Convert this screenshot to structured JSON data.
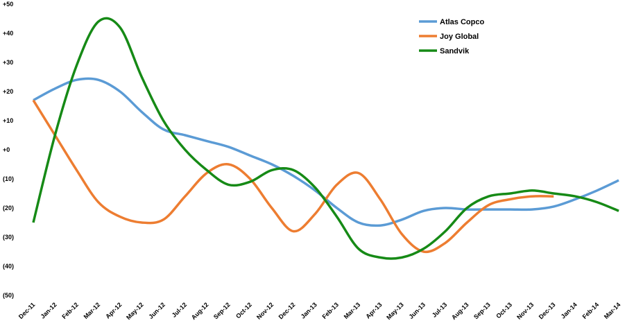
{
  "chart_data": {
    "type": "line",
    "categories": [
      "Dec-11",
      "Jan-12",
      "Feb-12",
      "Mar-12",
      "Apr-12",
      "May-12",
      "Jun-12",
      "Jul-12",
      "Aug-12",
      "Sep-12",
      "Oct-12",
      "Nov-12",
      "Dec-12",
      "Jan-13",
      "Feb-13",
      "Mar-13",
      "Apr-13",
      "May-13",
      "Jun-13",
      "Jul-13",
      "Aug-13",
      "Sep-13",
      "Oct-13",
      "Nov-13",
      "Dec-13",
      "Jan-14",
      "Feb-14",
      "Mar-14"
    ],
    "series": [
      {
        "name": "Atlas Copco",
        "color": "#5b9bd5",
        "values": [
          17,
          21,
          24,
          24,
          20,
          13,
          7,
          5,
          3,
          1,
          -2,
          -5,
          -9,
          -14,
          -20,
          -25,
          -26,
          -24,
          -21,
          -20,
          -20.5,
          -20.5,
          -20.5,
          -20.5,
          -19.5,
          -17,
          -14,
          -10.5
        ]
      },
      {
        "name": "Joy Global",
        "color": "#ed7d31",
        "values": [
          17,
          5,
          -7,
          -18,
          -23,
          -25,
          -24,
          -16,
          -8,
          -5,
          -10,
          -20,
          -28,
          -22,
          -12,
          -8,
          -17,
          -29,
          -35,
          -32,
          -25,
          -19,
          -17,
          -16,
          -16,
          null,
          null,
          null
        ]
      },
      {
        "name": "Sandvik",
        "color": "#168a16",
        "values": [
          -25,
          5,
          29,
          44,
          42,
          25,
          10,
          0,
          -7,
          -12,
          -11,
          -7,
          -7,
          -13,
          -23,
          -34,
          -37,
          -37,
          -34,
          -28,
          -20,
          -16,
          -15,
          -14,
          -15,
          -16,
          -18,
          -21
        ]
      }
    ],
    "ylim": [
      -50,
      50
    ],
    "yticks": [
      {
        "value": 50,
        "label": "+50"
      },
      {
        "value": 40,
        "label": "+40"
      },
      {
        "value": 30,
        "label": "+30"
      },
      {
        "value": 20,
        "label": "+20"
      },
      {
        "value": 10,
        "label": "+10"
      },
      {
        "value": 0,
        "label": "+0"
      },
      {
        "value": -10,
        "label": "(10)"
      },
      {
        "value": -20,
        "label": "(20)"
      },
      {
        "value": -30,
        "label": "(30)"
      },
      {
        "value": -40,
        "label": "(40)"
      },
      {
        "value": -50,
        "label": "(50)"
      }
    ],
    "grid": false,
    "legend": "upper right"
  }
}
